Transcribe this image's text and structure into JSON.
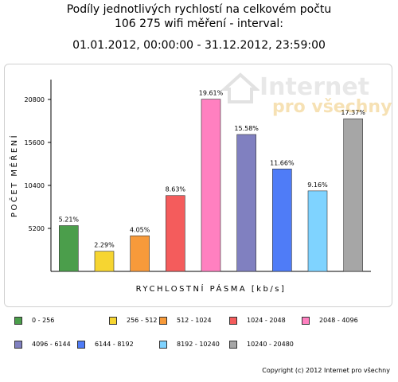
{
  "title_line1": "Podíly jednotlivých rychlostí na celkovém počtu",
  "title_line2": "106 275 wifi měření - interval:",
  "title_line3": "01.01.2012, 00:00:00 - 31.12.2012, 23:59:00",
  "watermark": {
    "line1": "Internet",
    "line2": "pro všechny"
  },
  "footer": "Copyright (c) 2012 Internet pro všechny",
  "chart_data": {
    "type": "bar",
    "categories": [
      "0 - 256",
      "256 - 512",
      "512 - 1024",
      "1024 - 2048",
      "2048 - 4096",
      "4096 - 6144",
      "6144 - 8192",
      "8192 - 10240",
      "10240 - 20480"
    ],
    "values": [
      5537,
      2434,
      4304,
      9171,
      20828,
      16558,
      12392,
      9735,
      18461
    ],
    "data_labels": [
      "5.21%",
      "2.29%",
      "4.05%",
      "8.63%",
      "19.61%",
      "15.58%",
      "11.66%",
      "9.16%",
      "17.37%"
    ],
    "colors": [
      "#4b9e4b",
      "#f6d531",
      "#f79a3a",
      "#f45c5c",
      "#ff80c0",
      "#8080c0",
      "#4f7cf7",
      "#7fd3ff",
      "#a6a6a6"
    ],
    "xlabel": "RYCHLOSTNÍ PÁSMA [kb/s]",
    "ylabel": "POČET MĚŘENÍ",
    "yticks": [
      5200,
      10400,
      15600,
      20800
    ],
    "ylim": [
      0,
      23200
    ],
    "grid": false,
    "legend_position": "bottom"
  }
}
